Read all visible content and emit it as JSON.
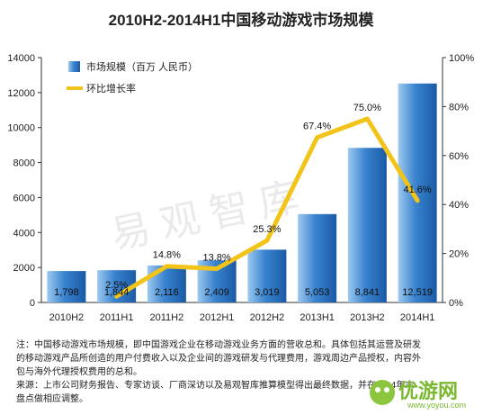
{
  "chart_data": {
    "type": "bar",
    "title": "2010H2-2014H1中国移动游戏市场规模",
    "categories": [
      "2010H2",
      "2011H1",
      "2011H2",
      "2012H1",
      "2012H2",
      "2013H1",
      "2013H2",
      "2014H1"
    ],
    "series": [
      {
        "name": "市场规模（百万 人民币）",
        "type": "bar",
        "axis": "left",
        "color": "#2f6fb6",
        "values": [
          1798,
          1844,
          2116,
          2409,
          3019,
          5053,
          8841,
          12519
        ],
        "labels": [
          "1,798",
          "1,844",
          "2,116",
          "2,409",
          "3,019",
          "5,053",
          "8,841",
          "12,519"
        ]
      },
      {
        "name": "环比增长率",
        "type": "line",
        "axis": "right",
        "color": "#f2c318",
        "values": [
          null,
          2.5,
          14.8,
          13.8,
          25.3,
          67.4,
          75.0,
          41.6
        ],
        "labels": [
          "",
          "2.5%",
          "14.8%",
          "13.8%",
          "25.3%",
          "67.4%",
          "75.0%",
          "41.6%"
        ]
      }
    ],
    "y_left": {
      "min": 0,
      "max": 14000,
      "ticks": [
        0,
        2000,
        4000,
        6000,
        8000,
        10000,
        12000,
        14000
      ],
      "tick_labels": [
        "0",
        "2000",
        "4000",
        "6000",
        "8000",
        "10000",
        "12000",
        "14000"
      ]
    },
    "y_right": {
      "min": 0,
      "max": 100,
      "ticks": [
        0,
        20,
        40,
        60,
        80,
        100
      ],
      "tick_labels": [
        "0%",
        "20%",
        "40%",
        "60%",
        "80%",
        "100%"
      ]
    },
    "legend": {
      "position": "top-left",
      "items": [
        "市场规模（百万 人民币）",
        "环比增长率"
      ]
    },
    "grid": false
  },
  "watermark": "易观智库",
  "notes": {
    "line1": "注：中国移动游戏市场规模，即中国游戏企业在移动游戏业务方面的营收总和。具体包括其运营及研发",
    "line2": "的移动游戏产品所创造的用户付费收入以及企业间的游戏研发与代理费用，游戏周边产品授权，内容外",
    "line3": "包与海外代理授权费用的总和。",
    "line4": "来源：上市公司财务报告、专家访谈、厂商深访以及易观智库推算模型得出最终数据，并在2014年末",
    "line5": "盘点做相应调整。"
  },
  "logo": {
    "text": "优游网",
    "url": "www.yoyou.com"
  }
}
